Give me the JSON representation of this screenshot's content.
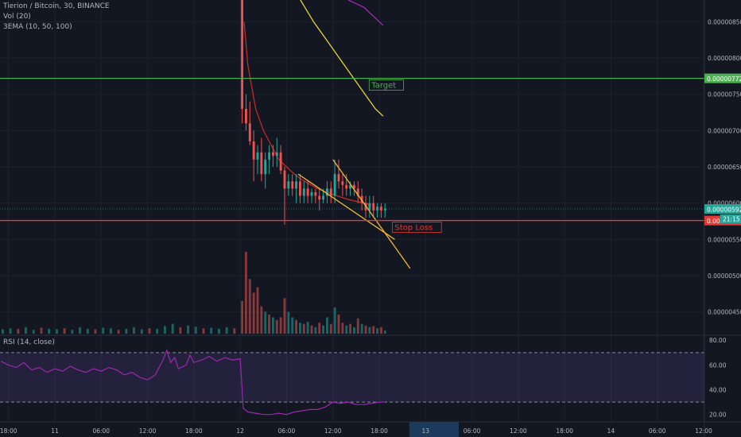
{
  "header": {
    "symbol_line": "Tierion / Bitcoin, 30, BINANCE",
    "vol_line": "Vol (20)",
    "ema_line": "3EMA (10, 50, 100)",
    "rsi_line": "RSI (14, close)"
  },
  "colors": {
    "background": "#131722",
    "grid": "#1e222d",
    "up": "#26a69a",
    "down": "#ef5350",
    "ema_red": "#c62828",
    "ema_yellow": "#e6d53a",
    "ema_purple": "#9c27b0",
    "wedge": "#f0b93a",
    "target": "#4caf50",
    "stop": "#e53935",
    "rsi": "#9c27b0",
    "price_tag": "#26a69a"
  },
  "chart_data": {
    "type": "candlestick",
    "symbol": "Tierion / Bitcoin",
    "interval": "30",
    "exchange": "BINANCE",
    "price_axis": {
      "ticks": [
        "0.00000850",
        "0.00000800",
        "0.00000750",
        "0.00000700",
        "0.00000650",
        "0.00000600",
        "0.00000550",
        "0.00000500",
        "0.00000450"
      ],
      "tick_values": [
        8.5e-06,
        8e-06,
        7.5e-06,
        7e-06,
        6.5e-06,
        6e-06,
        5.5e-06,
        5e-06,
        4.5e-06
      ],
      "ylim": [
        4.2e-06,
        8.8e-06
      ]
    },
    "time_axis": {
      "labels": [
        "18:00",
        "11",
        "06:00",
        "12:00",
        "18:00",
        "12",
        "06:00",
        "12:00",
        "18:00",
        "13",
        "06:00",
        "12:00",
        "18:00",
        "14",
        "06:00",
        "12:00"
      ],
      "label_hours": [
        -6,
        0,
        6,
        12,
        18,
        24,
        30,
        36,
        42,
        48,
        54,
        60,
        66,
        72,
        78,
        84
      ],
      "xlim_hours": [
        -7.1,
        84.1
      ]
    },
    "candles": [
      {
        "t": 24.25,
        "o": 9.5e-06,
        "h": 9.9e-06,
        "l": 7.1e-06,
        "c": 7.3e-06
      },
      {
        "t": 24.75,
        "o": 7.3e-06,
        "h": 7.5e-06,
        "l": 7e-06,
        "c": 7.1e-06
      },
      {
        "t": 25.25,
        "o": 7.1e-06,
        "h": 7.4e-06,
        "l": 6.8e-06,
        "c": 6.85e-06
      },
      {
        "t": 25.75,
        "o": 6.85e-06,
        "h": 7e-06,
        "l": 6.3e-06,
        "c": 6.6e-06
      },
      {
        "t": 26.25,
        "o": 6.6e-06,
        "h": 6.8e-06,
        "l": 6.4e-06,
        "c": 6.7e-06
      },
      {
        "t": 26.75,
        "o": 6.7e-06,
        "h": 6.9e-06,
        "l": 6.3e-06,
        "c": 6.4e-06
      },
      {
        "t": 27.25,
        "o": 6.4e-06,
        "h": 6.7e-06,
        "l": 6.2e-06,
        "c": 6.6e-06
      },
      {
        "t": 27.75,
        "o": 6.6e-06,
        "h": 6.8e-06,
        "l": 6.4e-06,
        "c": 6.7e-06
      },
      {
        "t": 28.25,
        "o": 6.7e-06,
        "h": 6.8e-06,
        "l": 6.5e-06,
        "c": 6.65e-06
      },
      {
        "t": 28.75,
        "o": 6.65e-06,
        "h": 6.9e-06,
        "l": 6.5e-06,
        "c": 6.7e-06
      },
      {
        "t": 29.25,
        "o": 6.7e-06,
        "h": 6.8e-06,
        "l": 6.4e-06,
        "c": 6.45e-06
      },
      {
        "t": 29.75,
        "o": 6.45e-06,
        "h": 6.5e-06,
        "l": 5.7e-06,
        "c": 6.2e-06
      },
      {
        "t": 30.25,
        "o": 6.2e-06,
        "h": 6.4e-06,
        "l": 6.1e-06,
        "c": 6.3e-06
      },
      {
        "t": 30.75,
        "o": 6.3e-06,
        "h": 6.4e-06,
        "l": 6.1e-06,
        "c": 6.2e-06
      },
      {
        "t": 31.25,
        "o": 6.2e-06,
        "h": 6.4e-06,
        "l": 6e-06,
        "c": 6.3e-06
      },
      {
        "t": 31.75,
        "o": 6.3e-06,
        "h": 6.4e-06,
        "l": 6e-06,
        "c": 6.1e-06
      },
      {
        "t": 32.25,
        "o": 6.1e-06,
        "h": 6.3e-06,
        "l": 6e-06,
        "c": 6.2e-06
      },
      {
        "t": 32.75,
        "o": 6.2e-06,
        "h": 6.3e-06,
        "l": 6e-06,
        "c": 6.1e-06
      },
      {
        "t": 33.25,
        "o": 6.1e-06,
        "h": 6.2e-06,
        "l": 6e-06,
        "c": 6.15e-06
      },
      {
        "t": 33.75,
        "o": 6.15e-06,
        "h": 6.2e-06,
        "l": 6e-06,
        "c": 6.1e-06
      },
      {
        "t": 34.25,
        "o": 6.1e-06,
        "h": 6.2e-06,
        "l": 5.9e-06,
        "c": 6.05e-06
      },
      {
        "t": 34.75,
        "o": 6.05e-06,
        "h": 6.2e-06,
        "l": 6e-06,
        "c": 6.1e-06
      },
      {
        "t": 35.25,
        "o": 6.1e-06,
        "h": 6.3e-06,
        "l": 6e-06,
        "c": 6.2e-06
      },
      {
        "t": 35.75,
        "o": 6.2e-06,
        "h": 6.3e-06,
        "l": 6e-06,
        "c": 6.1e-06
      },
      {
        "t": 36.25,
        "o": 6.1e-06,
        "h": 6.6e-06,
        "l": 6e-06,
        "c": 6.4e-06
      },
      {
        "t": 36.75,
        "o": 6.4e-06,
        "h": 6.6e-06,
        "l": 6.2e-06,
        "c": 6.3e-06
      },
      {
        "t": 37.25,
        "o": 6.3e-06,
        "h": 6.4e-06,
        "l": 6.1e-06,
        "c": 6.25e-06
      },
      {
        "t": 37.75,
        "o": 6.25e-06,
        "h": 6.4e-06,
        "l": 6.1e-06,
        "c": 6.2e-06
      },
      {
        "t": 38.25,
        "o": 6.2e-06,
        "h": 6.3e-06,
        "l": 6.1e-06,
        "c": 6.25e-06
      },
      {
        "t": 38.75,
        "o": 6.25e-06,
        "h": 6.3e-06,
        "l": 6.1e-06,
        "c": 6.2e-06
      },
      {
        "t": 39.25,
        "o": 6.2e-06,
        "h": 6.3e-06,
        "l": 6e-06,
        "c": 6.1e-06
      },
      {
        "t": 39.75,
        "o": 6.1e-06,
        "h": 6.2e-06,
        "l": 5.9e-06,
        "c": 6e-06
      },
      {
        "t": 40.25,
        "o": 6e-06,
        "h": 6.1e-06,
        "l": 5.8e-06,
        "c": 5.9e-06
      },
      {
        "t": 40.75,
        "o": 5.9e-06,
        "h": 6.1e-06,
        "l": 5.8e-06,
        "c": 6e-06
      },
      {
        "t": 41.25,
        "o": 6e-06,
        "h": 6.1e-06,
        "l": 5.8e-06,
        "c": 5.9e-06
      },
      {
        "t": 41.75,
        "o": 5.9e-06,
        "h": 6e-06,
        "l": 5.8e-06,
        "c": 5.95e-06
      },
      {
        "t": 42.25,
        "o": 5.95e-06,
        "h": 6e-06,
        "l": 5.8e-06,
        "c": 5.9e-06
      },
      {
        "t": 42.75,
        "o": 5.9e-06,
        "h": 6e-06,
        "l": 5.8e-06,
        "c": 5.925e-06
      }
    ],
    "volume": [
      {
        "t": -6.75,
        "v": 8,
        "up": true
      },
      {
        "t": -5.75,
        "v": 10,
        "up": true
      },
      {
        "t": -4.75,
        "v": 9,
        "up": false
      },
      {
        "t": -3.75,
        "v": 12,
        "up": true
      },
      {
        "t": -2.75,
        "v": 7,
        "up": true
      },
      {
        "t": -1.75,
        "v": 11,
        "up": false
      },
      {
        "t": -0.75,
        "v": 9,
        "up": true
      },
      {
        "t": 0.25,
        "v": 8,
        "up": true
      },
      {
        "t": 1.25,
        "v": 10,
        "up": false
      },
      {
        "t": 2.25,
        "v": 7,
        "up": true
      },
      {
        "t": 3.25,
        "v": 12,
        "up": true
      },
      {
        "t": 4.25,
        "v": 9,
        "up": true
      },
      {
        "t": 5.25,
        "v": 8,
        "up": false
      },
      {
        "t": 6.25,
        "v": 11,
        "up": true
      },
      {
        "t": 7.25,
        "v": 10,
        "up": true
      },
      {
        "t": 8.25,
        "v": 7,
        "up": false
      },
      {
        "t": 9.25,
        "v": 9,
        "up": true
      },
      {
        "t": 10.25,
        "v": 12,
        "up": true
      },
      {
        "t": 11.25,
        "v": 8,
        "up": true
      },
      {
        "t": 12.25,
        "v": 10,
        "up": false
      },
      {
        "t": 13.25,
        "v": 9,
        "up": true
      },
      {
        "t": 14.25,
        "v": 14,
        "up": true
      },
      {
        "t": 15.25,
        "v": 18,
        "up": true
      },
      {
        "t": 16.25,
        "v": 12,
        "up": false
      },
      {
        "t": 17.25,
        "v": 15,
        "up": true
      },
      {
        "t": 18.25,
        "v": 13,
        "up": true
      },
      {
        "t": 19.25,
        "v": 10,
        "up": false
      },
      {
        "t": 20.25,
        "v": 11,
        "up": true
      },
      {
        "t": 21.25,
        "v": 9,
        "up": true
      },
      {
        "t": 22.25,
        "v": 12,
        "up": true
      },
      {
        "t": 23.25,
        "v": 10,
        "up": false
      },
      {
        "t": 24.25,
        "v": 60,
        "up": false
      },
      {
        "t": 24.75,
        "v": 150,
        "up": false
      },
      {
        "t": 25.25,
        "v": 100,
        "up": false
      },
      {
        "t": 25.75,
        "v": 75,
        "up": false
      },
      {
        "t": 26.25,
        "v": 85,
        "up": false
      },
      {
        "t": 26.75,
        "v": 50,
        "up": false
      },
      {
        "t": 27.25,
        "v": 40,
        "up": true
      },
      {
        "t": 27.75,
        "v": 35,
        "up": false
      },
      {
        "t": 28.25,
        "v": 30,
        "up": true
      },
      {
        "t": 28.75,
        "v": 25,
        "up": false
      },
      {
        "t": 29.25,
        "v": 30,
        "up": false
      },
      {
        "t": 29.75,
        "v": 65,
        "up": false
      },
      {
        "t": 30.25,
        "v": 40,
        "up": true
      },
      {
        "t": 30.75,
        "v": 30,
        "up": true
      },
      {
        "t": 31.25,
        "v": 25,
        "up": false
      },
      {
        "t": 31.75,
        "v": 20,
        "up": true
      },
      {
        "t": 32.25,
        "v": 18,
        "up": false
      },
      {
        "t": 32.75,
        "v": 22,
        "up": true
      },
      {
        "t": 33.25,
        "v": 15,
        "up": false
      },
      {
        "t": 33.75,
        "v": 12,
        "up": true
      },
      {
        "t": 34.25,
        "v": 20,
        "up": false
      },
      {
        "t": 34.75,
        "v": 15,
        "up": true
      },
      {
        "t": 35.25,
        "v": 30,
        "up": true
      },
      {
        "t": 35.75,
        "v": 18,
        "up": false
      },
      {
        "t": 36.25,
        "v": 48,
        "up": true
      },
      {
        "t": 36.75,
        "v": 35,
        "up": false
      },
      {
        "t": 37.25,
        "v": 20,
        "up": false
      },
      {
        "t": 37.75,
        "v": 15,
        "up": true
      },
      {
        "t": 38.25,
        "v": 18,
        "up": false
      },
      {
        "t": 38.75,
        "v": 12,
        "up": true
      },
      {
        "t": 39.25,
        "v": 28,
        "up": false
      },
      {
        "t": 39.75,
        "v": 18,
        "up": true
      },
      {
        "t": 40.25,
        "v": 15,
        "up": false
      },
      {
        "t": 40.75,
        "v": 12,
        "up": true
      },
      {
        "t": 41.25,
        "v": 14,
        "up": false
      },
      {
        "t": 41.75,
        "v": 10,
        "up": true
      },
      {
        "t": 42.25,
        "v": 12,
        "up": false
      },
      {
        "t": 42.75,
        "v": 6,
        "up": true
      }
    ],
    "volume_max": 160,
    "ema_red": [
      [
        24.5,
        8.5e-06
      ],
      [
        25.0,
        7.9e-06
      ],
      [
        25.5,
        7.6e-06
      ],
      [
        26.0,
        7.3e-06
      ],
      [
        27.0,
        7e-06
      ],
      [
        28.0,
        6.8e-06
      ],
      [
        29.0,
        6.6e-06
      ],
      [
        30.0,
        6.5e-06
      ],
      [
        31.0,
        6.4e-06
      ],
      [
        32.0,
        6.32e-06
      ],
      [
        33.0,
        6.26e-06
      ],
      [
        34.0,
        6.2e-06
      ],
      [
        36.0,
        6.12e-06
      ],
      [
        38.0,
        6.05e-06
      ],
      [
        40.0,
        6e-06
      ],
      [
        41.0,
        5.98e-06
      ]
    ],
    "ema_yellow": [
      [
        31.8,
        8.8e-06
      ],
      [
        33.5,
        8.5e-06
      ],
      [
        35.5,
        8.2e-06
      ],
      [
        37.5,
        7.9e-06
      ],
      [
        39.5,
        7.6e-06
      ],
      [
        41.5,
        7.3e-06
      ],
      [
        42.5,
        7.2e-06
      ]
    ],
    "ema_purple": [
      [
        38.0,
        8.8e-06
      ],
      [
        40.0,
        8.7e-06
      ],
      [
        42.0,
        8.5e-06
      ],
      [
        42.5,
        8.45e-06
      ]
    ],
    "wedge_lines": [
      {
        "from": [
          36.0,
          6.6e-06
        ],
        "to": [
          46.0,
          5.1e-06
        ]
      },
      {
        "from": [
          31.5,
          6.4e-06
        ],
        "to": [
          44.0,
          5.5e-06
        ]
      }
    ],
    "levels": [
      {
        "label": "Target",
        "price_label": "0.00000772",
        "value": 7.72e-06,
        "color": "#4caf50",
        "text_at_hours": 41.0
      },
      {
        "label": "Stop Loss",
        "price_label": "0.00000576",
        "value": 5.76e-06,
        "color": "#e53935",
        "text_at_hours": 44.0
      }
    ],
    "last_price": {
      "label": "0.00000592",
      "value": 5.92e-06,
      "countdown": "21:15"
    },
    "price_tick_near_last": "0.00000600",
    "rsi": {
      "ticks": [
        "80.00",
        "60.00",
        "40.00",
        "20.00"
      ],
      "tick_values": [
        80,
        60,
        40,
        20
      ],
      "ylim": [
        14,
        84
      ],
      "upper": 70,
      "lower": 30,
      "points": [
        [
          -7.0,
          63
        ],
        [
          -6.0,
          60
        ],
        [
          -5.0,
          58
        ],
        [
          -4.0,
          62
        ],
        [
          -3.0,
          56
        ],
        [
          -2.0,
          58
        ],
        [
          -1.0,
          54
        ],
        [
          0.0,
          57
        ],
        [
          1.0,
          55
        ],
        [
          2.0,
          59
        ],
        [
          3.0,
          56
        ],
        [
          4.0,
          54
        ],
        [
          5.0,
          57
        ],
        [
          6.0,
          55
        ],
        [
          7.0,
          58
        ],
        [
          8.0,
          56
        ],
        [
          9.0,
          52
        ],
        [
          10.0,
          54
        ],
        [
          11.0,
          50
        ],
        [
          12.0,
          48
        ],
        [
          13.0,
          52
        ],
        [
          14.0,
          64
        ],
        [
          14.5,
          72
        ],
        [
          15.0,
          62
        ],
        [
          15.5,
          66
        ],
        [
          16.0,
          57
        ],
        [
          17.0,
          60
        ],
        [
          17.5,
          68
        ],
        [
          18.0,
          62
        ],
        [
          19.0,
          64
        ],
        [
          20.0,
          67
        ],
        [
          21.0,
          63
        ],
        [
          22.0,
          66
        ],
        [
          23.0,
          64
        ],
        [
          24.0,
          65
        ],
        [
          24.4,
          25
        ],
        [
          25.0,
          22
        ],
        [
          26.0,
          21
        ],
        [
          27.0,
          20
        ],
        [
          28.0,
          20
        ],
        [
          29.0,
          21
        ],
        [
          30.0,
          20
        ],
        [
          31.0,
          22
        ],
        [
          32.0,
          23
        ],
        [
          33.0,
          24
        ],
        [
          34.0,
          24
        ],
        [
          35.0,
          26
        ],
        [
          36.0,
          30
        ],
        [
          37.0,
          29
        ],
        [
          38.0,
          30
        ],
        [
          39.0,
          28
        ],
        [
          40.0,
          28
        ],
        [
          41.0,
          29
        ],
        [
          42.0,
          30
        ],
        [
          42.75,
          30
        ]
      ]
    },
    "future_highlight_hours": [
      45.9,
      52.3
    ]
  }
}
